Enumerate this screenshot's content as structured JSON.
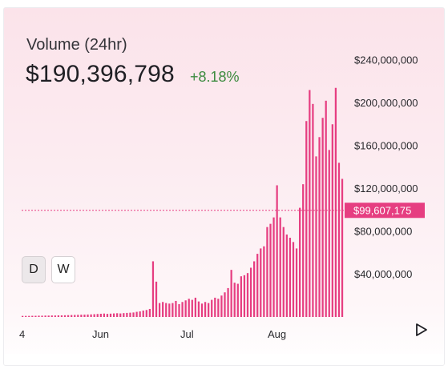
{
  "header": {
    "title": "Volume (24hr)",
    "value": "$190,396,798",
    "change": "+8.18%"
  },
  "range_buttons": [
    "D",
    "W"
  ],
  "controls": {
    "play_icon": "play-triangle-icon"
  },
  "colors": {
    "bar": "#e63e81",
    "reference": "#e63e81",
    "change_positive": "#3c8b3f"
  },
  "chart_data": {
    "type": "bar",
    "title": "Volume (24hr)",
    "ylim": [
      0,
      240000000
    ],
    "y_tick_labels": [
      "$240,000,000",
      "$200,000,000",
      "$160,000,000",
      "$120,000,000",
      "$80,000,000",
      "$40,000,000"
    ],
    "y_tick_values": [
      240000000,
      200000000,
      160000000,
      120000000,
      80000000,
      40000000
    ],
    "x_tick_labels": [
      "4",
      "Jun",
      "Jul",
      "Aug"
    ],
    "reference_line": {
      "value": 99607175,
      "label": "$99,607,175"
    },
    "grid": false,
    "series": [
      {
        "values": [
          1000000,
          1000000,
          1000000,
          1100000,
          1100000,
          1200000,
          1200000,
          1300000,
          1300000,
          1400000,
          1400000,
          1500000,
          1500000,
          1600000,
          1700000,
          1800000,
          1900000,
          2000000,
          2100000,
          2200000,
          2300000,
          2400000,
          2600000,
          2800000,
          3000000,
          3200000,
          2900000,
          3100000,
          3300000,
          3500000,
          3300000,
          3600000,
          3800000,
          4000000,
          4200000,
          4800000,
          5200000,
          6000000,
          6500000,
          7500000,
          52000000,
          33000000,
          13000000,
          14000000,
          13000000,
          12500000,
          13000000,
          15000000,
          12000000,
          14000000,
          15500000,
          17000000,
          16000000,
          18000000,
          14500000,
          12500000,
          14000000,
          13000000,
          16000000,
          18000000,
          17000000,
          20000000,
          23000000,
          27000000,
          44000000,
          32000000,
          31000000,
          38000000,
          39000000,
          41000000,
          46000000,
          52000000,
          59000000,
          64000000,
          66000000,
          84000000,
          87000000,
          93000000,
          123000000,
          93000000,
          84000000,
          77000000,
          74000000,
          70000000,
          64000000,
          102000000,
          124000000,
          183000000,
          212000000,
          199000000,
          150000000,
          168000000,
          186000000,
          202000000,
          156000000,
          180000000,
          214000000,
          144000000,
          129000000
        ]
      }
    ]
  }
}
